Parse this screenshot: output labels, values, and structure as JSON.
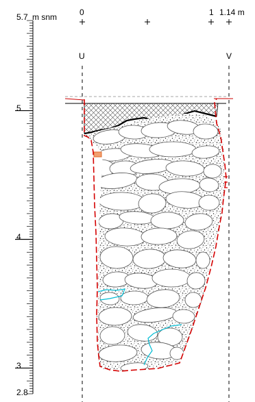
{
  "scale": {
    "top_label_value": "5.7",
    "top_label_unit": "m snm",
    "bottom_label": "2.8",
    "major_labels": [
      "5",
      "4",
      "3"
    ],
    "top_value": 5.7,
    "bottom_value": 2.8,
    "majors": [
      5,
      4,
      3
    ]
  },
  "horizontal_scale": {
    "start_label": "0",
    "mid_label": "1",
    "end_label": "1.14 m"
  },
  "section_points": {
    "left": "U",
    "right": "V"
  },
  "colors": {
    "outline": "#d40000",
    "water": "#00bcd4",
    "brick": "#e06a2a",
    "ink": "#000000",
    "hatch": "#555555"
  }
}
